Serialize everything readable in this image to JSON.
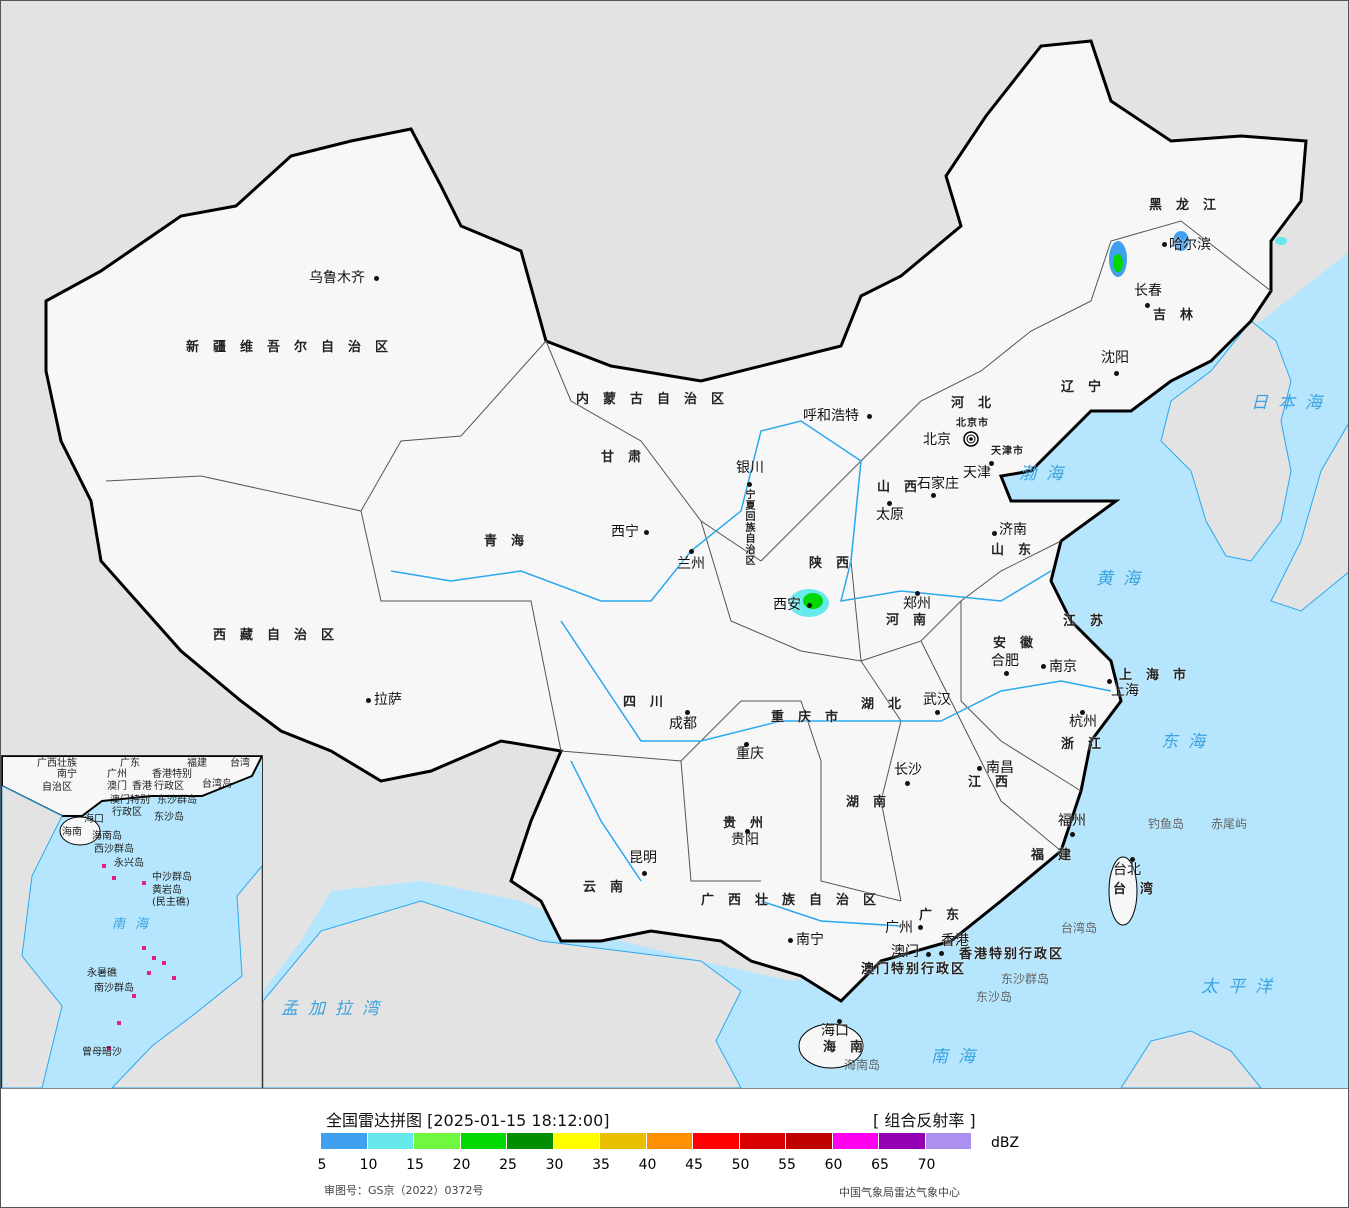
{
  "legend": {
    "title": "全国雷达拼图 [2025-01-15 18:12:00]",
    "product": "[ 组合反射率 ]",
    "unit": "dBZ",
    "ticks": [
      "5",
      "10",
      "15",
      "20",
      "25",
      "30",
      "35",
      "40",
      "45",
      "50",
      "55",
      "60",
      "65",
      "70"
    ],
    "colors": [
      "#40a0f0",
      "#66e8ec",
      "#70f840",
      "#00d800",
      "#008e00",
      "#ffff00",
      "#e8c000",
      "#ff9000",
      "#ff0000",
      "#d80000",
      "#c00000",
      "#ff00f0",
      "#9600b4",
      "#ac90f0"
    ],
    "approval": "审图号：GS京（2022）0372号",
    "organization": "中国气象局雷达气象中心"
  },
  "map": {
    "colors": {
      "land_outside": "#e3e3e3",
      "sea": "#b5e6fd",
      "china_land": "#f7f7f7",
      "river": "#2aa8ee",
      "border": "#000000"
    },
    "provinces": [
      "新疆维吾尔自治区",
      "西藏自治区",
      "青海",
      "甘肃",
      "内蒙古自治区",
      "黑龙江",
      "吉林",
      "辽宁",
      "河北",
      "山西",
      "山东",
      "陕西",
      "宁夏回族自治区",
      "河南",
      "江苏",
      "安徽",
      "上海市",
      "湖北",
      "四川",
      "重庆市",
      "浙江",
      "江西",
      "湖南",
      "贵州",
      "福建",
      "云南",
      "广西壮族自治区",
      "广东",
      "台湾",
      "香港特别行政区",
      "澳门特别行政区",
      "海南",
      "北京市",
      "天津市"
    ],
    "cities": [
      "乌鲁木齐",
      "拉萨",
      "西宁",
      "兰州",
      "银川",
      "呼和浩特",
      "北京",
      "天津",
      "石家庄",
      "太原",
      "济南",
      "郑州",
      "西安",
      "南京",
      "合肥",
      "上海",
      "武汉",
      "成都",
      "重庆",
      "杭州",
      "长沙",
      "南昌",
      "贵阳",
      "福州",
      "台北",
      "昆明",
      "南宁",
      "广州",
      "香港",
      "澳门",
      "海口",
      "哈尔滨",
      "长春",
      "沈阳"
    ],
    "seas": [
      "日本海",
      "渤海",
      "黄海",
      "东海",
      "太平洋",
      "南海",
      "孟加拉湾"
    ],
    "islands": [
      "钓鱼岛",
      "赤尾屿",
      "台湾岛",
      "东沙群岛",
      "东沙岛",
      "海南岛"
    ],
    "inset_labels": [
      "广西壮族",
      "自治区",
      "南宁",
      "广东",
      "广州",
      "澳门",
      "香港",
      "香港特别",
      "行政区",
      "澳门特别",
      "行政区",
      "台湾岛",
      "东沙群岛",
      "东沙岛",
      "海口",
      "海南",
      "海南岛",
      "西沙群岛",
      "永兴岛",
      "中沙群岛",
      "黄岩岛",
      "(民主礁)",
      "南海",
      "永暑礁",
      "南沙群岛",
      "曾母暗沙",
      "台湾",
      "福建"
    ]
  }
}
